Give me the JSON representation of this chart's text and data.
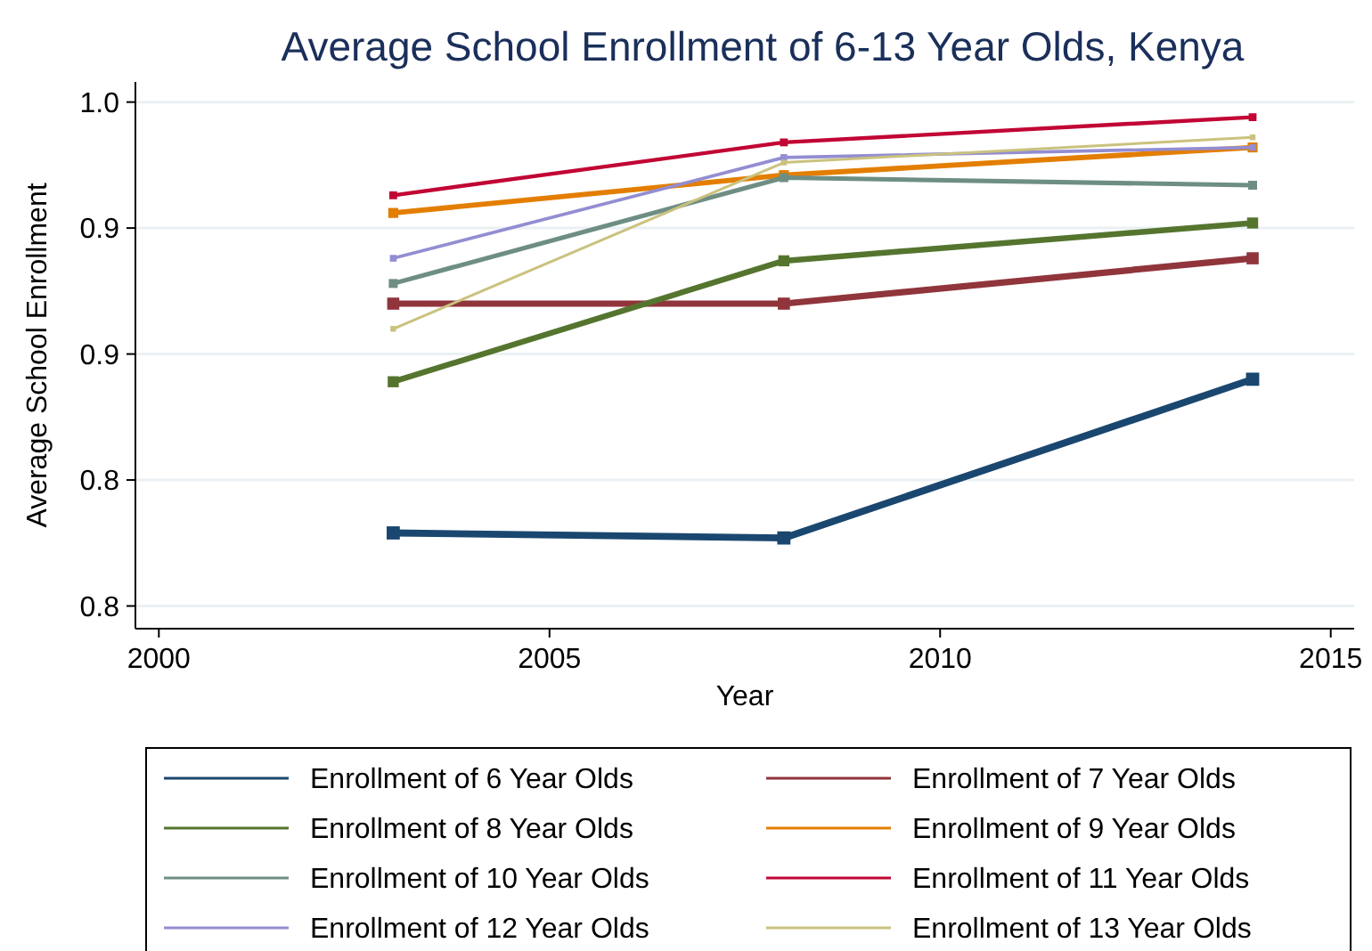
{
  "chart_data": {
    "type": "line",
    "title": "Average School Enrollment of 6-13 Year Olds, Kenya",
    "xlabel": "Year",
    "ylabel": "Average School Enrollment",
    "x": [
      2003,
      2008,
      2014
    ],
    "xlim": [
      1999.7,
      2015.3
    ],
    "xticks": [
      2000,
      2005,
      2010,
      2015
    ],
    "ylim": [
      0.791,
      1.008
    ],
    "yticks": [
      {
        "value": 0.8,
        "label": "0.8"
      },
      {
        "value": 0.85,
        "label": "0.8"
      },
      {
        "value": 0.9,
        "label": "0.9"
      },
      {
        "value": 0.95,
        "label": "0.9"
      },
      {
        "value": 1.0,
        "label": "1.0"
      }
    ],
    "grid": "y",
    "legend": "bottom",
    "marker": "square",
    "line_style": "solid",
    "series": [
      {
        "name": "Enrollment of 6 Year Olds",
        "color": "#1a476f",
        "values": [
          0.829,
          0.827,
          0.89
        ]
      },
      {
        "name": "Enrollment of 7 Year Olds",
        "color": "#90353b",
        "values": [
          0.92,
          0.92,
          0.938
        ]
      },
      {
        "name": "Enrollment of 8 Year Olds",
        "color": "#55752f",
        "values": [
          0.889,
          0.937,
          0.952
        ]
      },
      {
        "name": "Enrollment of 9 Year Olds",
        "color": "#e37e00",
        "values": [
          0.956,
          0.971,
          0.982
        ]
      },
      {
        "name": "Enrollment of 10 Year Olds",
        "color": "#6e8e84",
        "values": [
          0.928,
          0.97,
          0.967
        ]
      },
      {
        "name": "Enrollment of 11 Year Olds",
        "color": "#c10534",
        "values": [
          0.963,
          0.984,
          0.994
        ]
      },
      {
        "name": "Enrollment of 12 Year Olds",
        "color": "#938dd2",
        "values": [
          0.938,
          0.978,
          0.982
        ]
      },
      {
        "name": "Enrollment of 13 Year Olds",
        "color": "#cac27e",
        "values": [
          0.91,
          0.976,
          0.986
        ]
      }
    ]
  }
}
